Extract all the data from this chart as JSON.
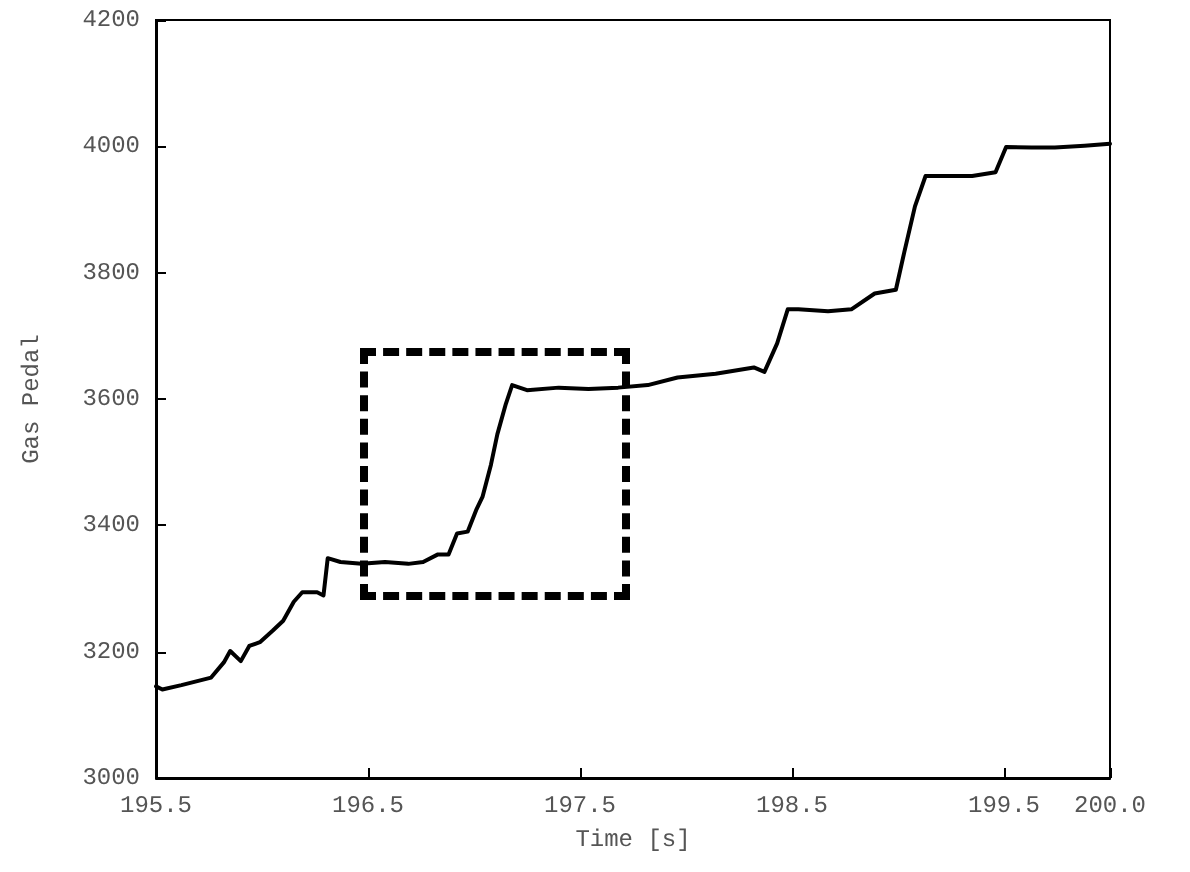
{
  "chart_data": {
    "type": "line",
    "xlabel": "Time [s]",
    "ylabel": "Gas Pedal",
    "xlim": [
      195.5,
      200.0
    ],
    "xticks": [
      195.5,
      196.5,
      197.5,
      198.5,
      199.5,
      {
        "value": 200,
        "label": "200.0"
      }
    ],
    "ylim": [
      3000,
      4200
    ],
    "yticks": [
      3000,
      3200,
      3400,
      3600,
      3800,
      4000,
      4200
    ],
    "marker": "none",
    "line_style": "solid",
    "series": [
      {
        "color": "#000000",
        "x": [
          195.5,
          195.53,
          195.62,
          195.69,
          195.76,
          195.82,
          195.85,
          195.9,
          195.94,
          195.99,
          196.05,
          196.1,
          196.15,
          196.19,
          196.26,
          196.29,
          196.31,
          196.37,
          196.47,
          196.58,
          196.69,
          196.76,
          196.83,
          196.88,
          196.92,
          196.97,
          197.01,
          197.04,
          197.08,
          197.11,
          197.15,
          197.18,
          197.25,
          197.4,
          197.54,
          197.68,
          197.82,
          197.96,
          198.14,
          198.32,
          198.37,
          198.43,
          198.48,
          198.53,
          198.67,
          198.78,
          198.89,
          198.99,
          199.03,
          199.08,
          199.13,
          199.24,
          199.35,
          199.46,
          199.51,
          199.63,
          199.74,
          199.88,
          200.0
        ],
        "values": [
          3145,
          3140,
          3147,
          3153,
          3159,
          3183,
          3201,
          3185,
          3209,
          3215,
          3233,
          3249,
          3279,
          3294,
          3294,
          3289,
          3348,
          3342,
          3339,
          3342,
          3339,
          3342,
          3354,
          3354,
          3387,
          3390,
          3424,
          3445,
          3496,
          3544,
          3592,
          3622,
          3614,
          3618,
          3616,
          3618,
          3622,
          3634,
          3640,
          3650,
          3643,
          3688,
          3742,
          3742,
          3739,
          3742,
          3767,
          3773,
          3833,
          3905,
          3953,
          3953,
          3953,
          3959,
          3999,
          3998,
          3998,
          4001,
          4004
        ]
      }
    ]
  }
}
